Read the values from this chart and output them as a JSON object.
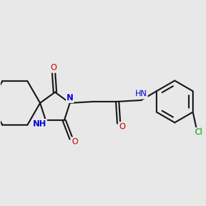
{
  "bg_color": "#e8e8e8",
  "bond_color": "#1a1a1a",
  "N_color": "#0000dd",
  "O_color": "#cc0000",
  "Cl_color": "#009900",
  "lw": 1.6,
  "fs": 8.5,
  "fig_w": 3.0,
  "fig_h": 3.0,
  "dpi": 100,
  "xlim": [
    -0.5,
    6.8
  ],
  "ylim": [
    -2.2,
    2.2
  ]
}
